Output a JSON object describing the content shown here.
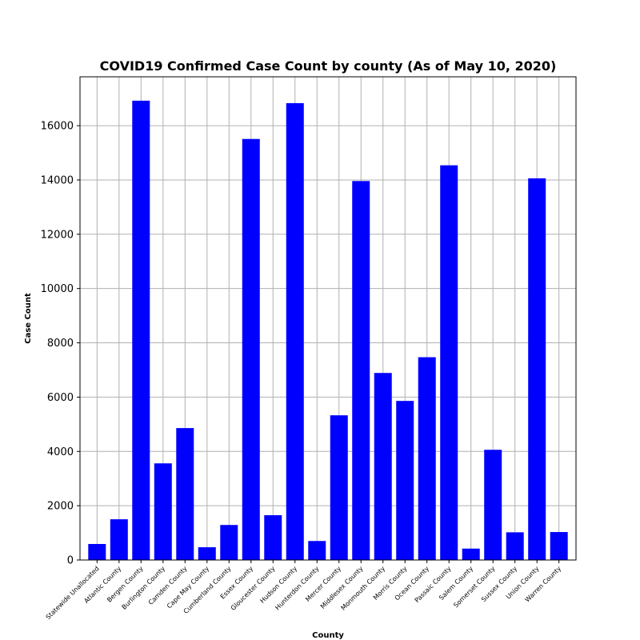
{
  "chart_data": {
    "type": "bar",
    "title": "COVID19 Confirmed Case Count by county (As of May 10, 2020)",
    "xlabel": "County",
    "ylabel": "Case Count",
    "categories": [
      "Statewide Unallocated",
      "Atlantic County",
      "Bergen County",
      "Burlington County",
      "Camden County",
      "Cape May County",
      "Cumberland County",
      "Essex County",
      "Gloucester County",
      "Hudson County",
      "Hunterdon County",
      "Mercer County",
      "Middlesex County",
      "Monmouth County",
      "Morris County",
      "Ocean County",
      "Passaic County",
      "Salem County",
      "Somerset County",
      "Sussex County",
      "Union County",
      "Warren County"
    ],
    "values": [
      590,
      1500,
      16920,
      3560,
      4860,
      470,
      1290,
      15510,
      1650,
      16830,
      700,
      5330,
      13960,
      6890,
      5860,
      7470,
      14540,
      420,
      4060,
      1020,
      14060,
      1030
    ],
    "ylim": [
      0,
      17800
    ],
    "yticks": [
      0,
      2000,
      4000,
      6000,
      8000,
      10000,
      12000,
      14000,
      16000
    ],
    "grid": true,
    "bar_color": "#0000ff"
  }
}
